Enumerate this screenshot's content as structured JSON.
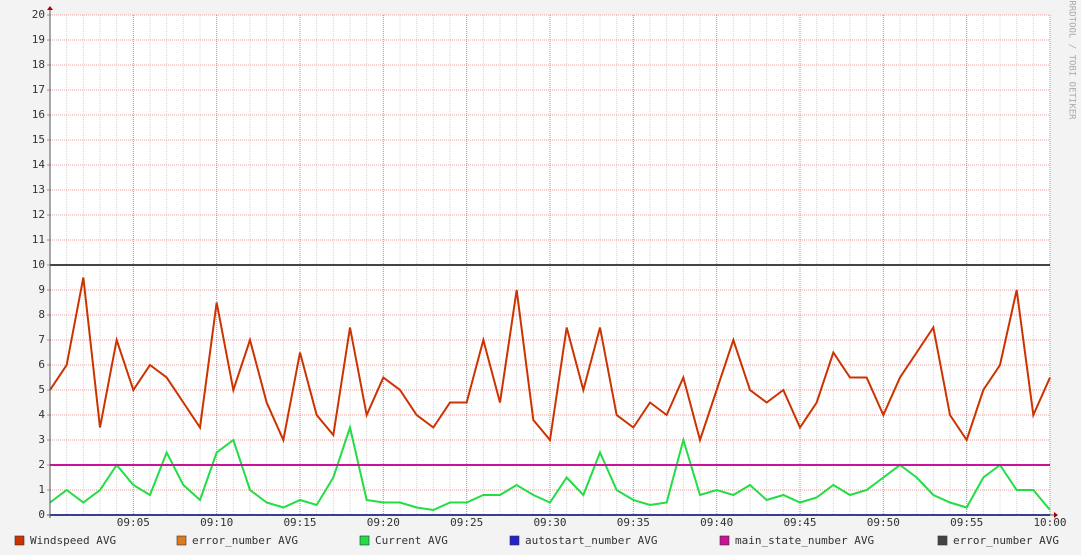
{
  "chart_data": {
    "type": "line",
    "watermark": "RRDTOOL / TOBI OETIKER",
    "x": [
      "09:00",
      "09:01",
      "09:02",
      "09:03",
      "09:04",
      "09:05",
      "09:06",
      "09:07",
      "09:08",
      "09:09",
      "09:10",
      "09:11",
      "09:12",
      "09:13",
      "09:14",
      "09:15",
      "09:16",
      "09:17",
      "09:18",
      "09:19",
      "09:20",
      "09:21",
      "09:22",
      "09:23",
      "09:24",
      "09:25",
      "09:26",
      "09:27",
      "09:28",
      "09:29",
      "09:30",
      "09:31",
      "09:32",
      "09:33",
      "09:34",
      "09:35",
      "09:36",
      "09:37",
      "09:38",
      "09:39",
      "09:40",
      "09:41",
      "09:42",
      "09:43",
      "09:44",
      "09:45",
      "09:46",
      "09:47",
      "09:48",
      "09:49",
      "09:50",
      "09:51",
      "09:52",
      "09:53",
      "09:54",
      "09:55",
      "09:56",
      "09:57",
      "09:58",
      "09:59",
      "10:00"
    ],
    "xlim": [
      "09:00",
      "10:00"
    ],
    "xticks": [
      "09:05",
      "09:10",
      "09:15",
      "09:20",
      "09:25",
      "09:30",
      "09:35",
      "09:40",
      "09:45",
      "09:50",
      "09:55",
      "10:00"
    ],
    "ylim": [
      0,
      20
    ],
    "yticks": [
      0,
      1,
      2,
      3,
      4,
      5,
      6,
      7,
      8,
      9,
      10,
      11,
      12,
      13,
      14,
      15,
      16,
      17,
      18,
      19,
      20
    ],
    "grid": true,
    "series": [
      {
        "name": "Windspeed AVG",
        "color": "#cc3300",
        "values": [
          5.0,
          6.0,
          9.5,
          3.5,
          7.0,
          5.0,
          6.0,
          5.5,
          4.5,
          3.5,
          8.5,
          5.0,
          7.0,
          4.5,
          3.0,
          6.5,
          4.0,
          3.2,
          7.5,
          4.0,
          5.5,
          5.0,
          4.0,
          3.5,
          4.5,
          4.5,
          7.0,
          4.5,
          9.0,
          3.8,
          3.0,
          7.5,
          5.0,
          7.5,
          4.0,
          3.5,
          4.5,
          4.0,
          5.5,
          3.0,
          5.0,
          7.0,
          5.0,
          4.5,
          5.0,
          3.5,
          4.5,
          6.5,
          5.5,
          5.5,
          4.0,
          5.5,
          6.5,
          7.5,
          4.0,
          3.0,
          5.0,
          6.0,
          9.0,
          4.0,
          5.5
        ]
      },
      {
        "name": "error_number AVG",
        "color": "#e07a1f",
        "values": [
          0,
          0,
          0,
          0,
          0,
          0,
          0,
          0,
          0,
          0,
          0,
          0,
          0,
          0,
          0,
          0,
          0,
          0,
          0,
          0,
          0,
          0,
          0,
          0,
          0,
          0,
          0,
          0,
          0,
          0,
          0,
          0,
          0,
          0,
          0,
          0,
          0,
          0,
          0,
          0,
          0,
          0,
          0,
          0,
          0,
          0,
          0,
          0,
          0,
          0,
          0,
          0,
          0,
          0,
          0,
          0,
          0,
          0,
          0,
          0,
          0
        ]
      },
      {
        "name": "Current AVG",
        "color": "#22dd44",
        "values": [
          0.5,
          1.0,
          0.5,
          1.0,
          2.0,
          1.2,
          0.8,
          2.5,
          1.2,
          0.6,
          2.5,
          3.0,
          1.0,
          0.5,
          0.3,
          0.6,
          0.4,
          1.5,
          3.5,
          0.6,
          0.5,
          0.5,
          0.3,
          0.2,
          0.5,
          0.5,
          0.8,
          0.8,
          1.2,
          0.8,
          0.5,
          1.5,
          0.8,
          2.5,
          1.0,
          0.6,
          0.4,
          0.5,
          3.0,
          0.8,
          1.0,
          0.8,
          1.2,
          0.6,
          0.8,
          0.5,
          0.7,
          1.2,
          0.8,
          1.0,
          1.5,
          2.0,
          1.5,
          0.8,
          0.5,
          0.3,
          1.5,
          2.0,
          1.0,
          1.0,
          0.2
        ]
      },
      {
        "name": "autostart_number AVG",
        "color": "#2222cc",
        "values": [
          0,
          0,
          0,
          0,
          0,
          0,
          0,
          0,
          0,
          0,
          0,
          0,
          0,
          0,
          0,
          0,
          0,
          0,
          0,
          0,
          0,
          0,
          0,
          0,
          0,
          0,
          0,
          0,
          0,
          0,
          0,
          0,
          0,
          0,
          0,
          0,
          0,
          0,
          0,
          0,
          0,
          0,
          0,
          0,
          0,
          0,
          0,
          0,
          0,
          0,
          0,
          0,
          0,
          0,
          0,
          0,
          0,
          0,
          0,
          0,
          0
        ]
      },
      {
        "name": "main_state_number AVG",
        "color": "#cc1199",
        "values": [
          2,
          2,
          2,
          2,
          2,
          2,
          2,
          2,
          2,
          2,
          2,
          2,
          2,
          2,
          2,
          2,
          2,
          2,
          2,
          2,
          2,
          2,
          2,
          2,
          2,
          2,
          2,
          2,
          2,
          2,
          2,
          2,
          2,
          2,
          2,
          2,
          2,
          2,
          2,
          2,
          2,
          2,
          2,
          2,
          2,
          2,
          2,
          2,
          2,
          2,
          2,
          2,
          2,
          2,
          2,
          2,
          2,
          2,
          2,
          2,
          2
        ]
      },
      {
        "name": "error_number AVG",
        "color": "#444444",
        "values": [
          10,
          10,
          10,
          10,
          10,
          10,
          10,
          10,
          10,
          10,
          10,
          10,
          10,
          10,
          10,
          10,
          10,
          10,
          10,
          10,
          10,
          10,
          10,
          10,
          10,
          10,
          10,
          10,
          10,
          10,
          10,
          10,
          10,
          10,
          10,
          10,
          10,
          10,
          10,
          10,
          10,
          10,
          10,
          10,
          10,
          10,
          10,
          10,
          10,
          10,
          10,
          10,
          10,
          10,
          10,
          10,
          10,
          10,
          10,
          10,
          10
        ]
      }
    ]
  }
}
